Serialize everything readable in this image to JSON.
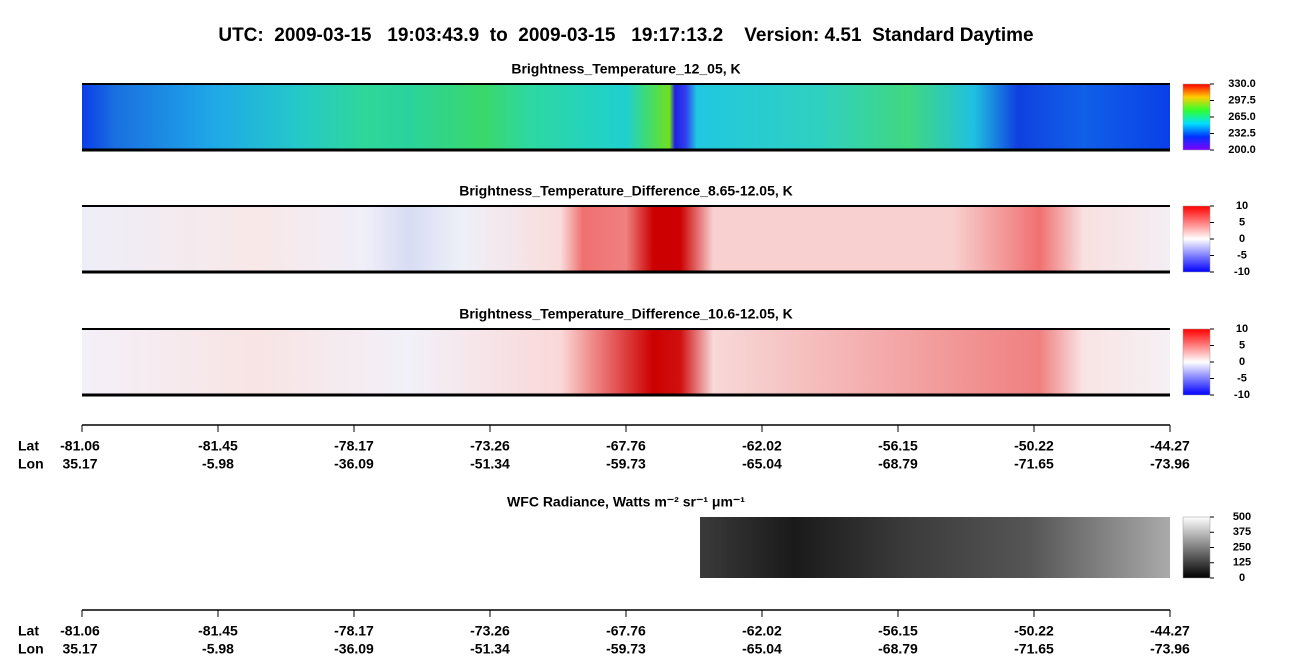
{
  "title": "UTC:  2009-03-15   19:03:43.9  to  2009-03-15   19:17:13.2    Version: 4.51  Standard Daytime",
  "chart_data": [
    {
      "type": "heatmap",
      "title": "Brightness_Temperature_12_05, K",
      "zlim": [
        200,
        330
      ],
      "zticks": [
        {
          "value": 200,
          "label": "200.0"
        },
        {
          "value": 232.5,
          "label": "232.5"
        },
        {
          "value": 265,
          "label": "265.0"
        },
        {
          "value": 297.5,
          "label": "297.5"
        },
        {
          "value": 330,
          "label": "330.0"
        }
      ]
    },
    {
      "type": "heatmap",
      "title": "Brightness_Temperature_Difference_8.65-12.05, K",
      "zlim": [
        -10,
        10
      ],
      "zticks": [
        -10,
        -5,
        0,
        5,
        10
      ]
    },
    {
      "type": "heatmap",
      "title": "Brightness_Temperature_Difference_10.6-12.05, K",
      "zlim": [
        -10,
        10
      ],
      "zticks": [
        -10,
        -5,
        0,
        5,
        10
      ]
    },
    {
      "type": "heatmap",
      "title": "WFC Radiance, Watts m⁻² sr⁻¹ μm⁻¹",
      "zlim": [
        0,
        500
      ],
      "zticks": [
        0,
        125,
        250,
        375,
        500
      ]
    }
  ],
  "x_axes": [
    {
      "row_labels": [
        "Lat",
        "Lon"
      ],
      "lat": [
        "-81.06",
        "-81.45",
        "-78.17",
        "-73.26",
        "-67.76",
        "-62.02",
        "-56.15",
        "-50.22",
        "-44.27"
      ],
      "lon": [
        "35.17",
        "-5.98",
        "-36.09",
        "-51.34",
        "-59.73",
        "-65.04",
        "-68.79",
        "-71.65",
        "-73.96"
      ]
    },
    {
      "row_labels": [
        "Lat",
        "Lon"
      ],
      "lat": [
        "-81.06",
        "-81.45",
        "-78.17",
        "-73.26",
        "-67.76",
        "-62.02",
        "-56.15",
        "-50.22",
        "-44.27"
      ],
      "lon": [
        "35.17",
        "-5.98",
        "-36.09",
        "-51.34",
        "-59.73",
        "-65.04",
        "-68.79",
        "-71.65",
        "-73.96"
      ]
    }
  ]
}
